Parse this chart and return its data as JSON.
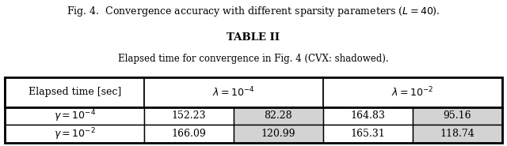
{
  "fig_caption": "Fig. 4.  Convergence accuracy with different sparsity parameters ($L = 40$).",
  "table_title": "TABLE II",
  "table_subtitle": "Elapsed time for convergence in Fig. 4 (CVX: shadowed).",
  "col_header_label": "Elapsed time [sec]",
  "col_headers": [
    "λ = 10⁻⁴",
    "λ = 10⁻²"
  ],
  "row_headers": [
    "γ = 10⁻⁴",
    "γ = 10⁻²"
  ],
  "data": [
    [
      "152.23",
      "82.28",
      "164.83",
      "95.16"
    ],
    [
      "166.09",
      "120.99",
      "165.31",
      "118.74"
    ]
  ],
  "shaded_cols": [
    1,
    3
  ],
  "shade_color": "#d3d3d3",
  "bg_color": "#ffffff",
  "border_color": "#000000",
  "font_size_caption": 9,
  "font_size_title": 9.5,
  "font_size_subtitle": 8.5,
  "font_size_table": 9
}
